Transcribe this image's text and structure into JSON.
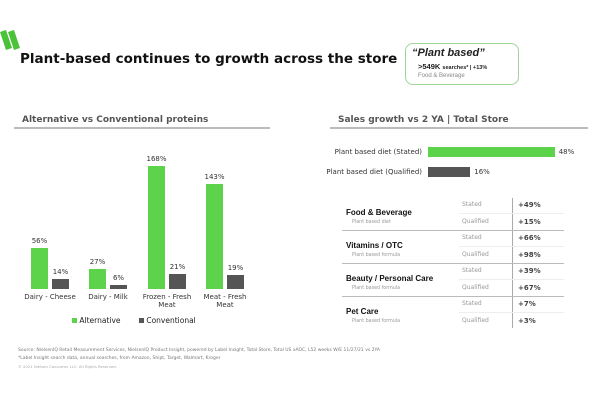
{
  "title": "Plant-based continues to growth across the store",
  "callout": {
    "quote": "“Plant based”",
    "searches": ">549K",
    "searches_label": "searches* | +13%",
    "category": "Food & Beverage"
  },
  "colors": {
    "green": "#5cd34a",
    "gray": "#555555",
    "logo": "#4cc23a"
  },
  "chart_data": [
    {
      "type": "bar",
      "title": "Alternative vs Conventional proteins",
      "categories": [
        "Dairy - Cheese",
        "Dairy - Milk",
        "Frozen - Fresh Meat",
        "Meat - Fresh Meat"
      ],
      "series": [
        {
          "name": "Alternative",
          "values": [
            56,
            27,
            168,
            143
          ],
          "labels": [
            "56%",
            "27%",
            "168%",
            "143%"
          ]
        },
        {
          "name": "Conventional",
          "values": [
            14,
            6,
            21,
            19
          ],
          "labels": [
            "14%",
            "6%",
            "21%",
            "19%"
          ]
        }
      ],
      "legend": "bottom",
      "ylim": [
        0,
        180
      ]
    },
    {
      "type": "bar",
      "orientation": "horizontal",
      "title": "Sales growth vs 2 YA | Total Store",
      "categories": [
        "Plant based diet (Stated)",
        "Plant based diet (Qualified)"
      ],
      "values": [
        48,
        16
      ],
      "labels": [
        "48%",
        "16%"
      ],
      "xlim": [
        0,
        50
      ]
    }
  ],
  "table": [
    {
      "category": "Food & Beverage",
      "sub": "Plant based diet",
      "rows": [
        {
          "type": "Stated",
          "value": "+49%"
        },
        {
          "type": "Qualified",
          "value": "+15%"
        }
      ]
    },
    {
      "category": "Vitamins / OTC",
      "sub": "Plant based formula",
      "rows": [
        {
          "type": "Stated",
          "value": "+66%"
        },
        {
          "type": "Qualified",
          "value": "+98%"
        }
      ]
    },
    {
      "category": "Beauty / Personal Care",
      "sub": "Plant based formula",
      "rows": [
        {
          "type": "Stated",
          "value": "+39%"
        },
        {
          "type": "Qualified",
          "value": "+67%"
        }
      ]
    },
    {
      "category": "Pet Care",
      "sub": "Plant based formula",
      "rows": [
        {
          "type": "Stated",
          "value": "+7%"
        },
        {
          "type": "Qualified",
          "value": "+3%"
        }
      ]
    }
  ],
  "footer": {
    "source": "Source: NielsenIQ Retail Measurement Services, NielsenIQ Product Insight, powered by Label Insight, Total Store, Total US xAOC, L52 weeks W/E 11/27/21 vs 2YA",
    "note": "*Label Insight search data, annual searches, from Amazon, Shipt, Target, Walmart, Kroger",
    "copyright": "© 2021 Nielsen Consumer LLC. All Rights Reserved."
  }
}
